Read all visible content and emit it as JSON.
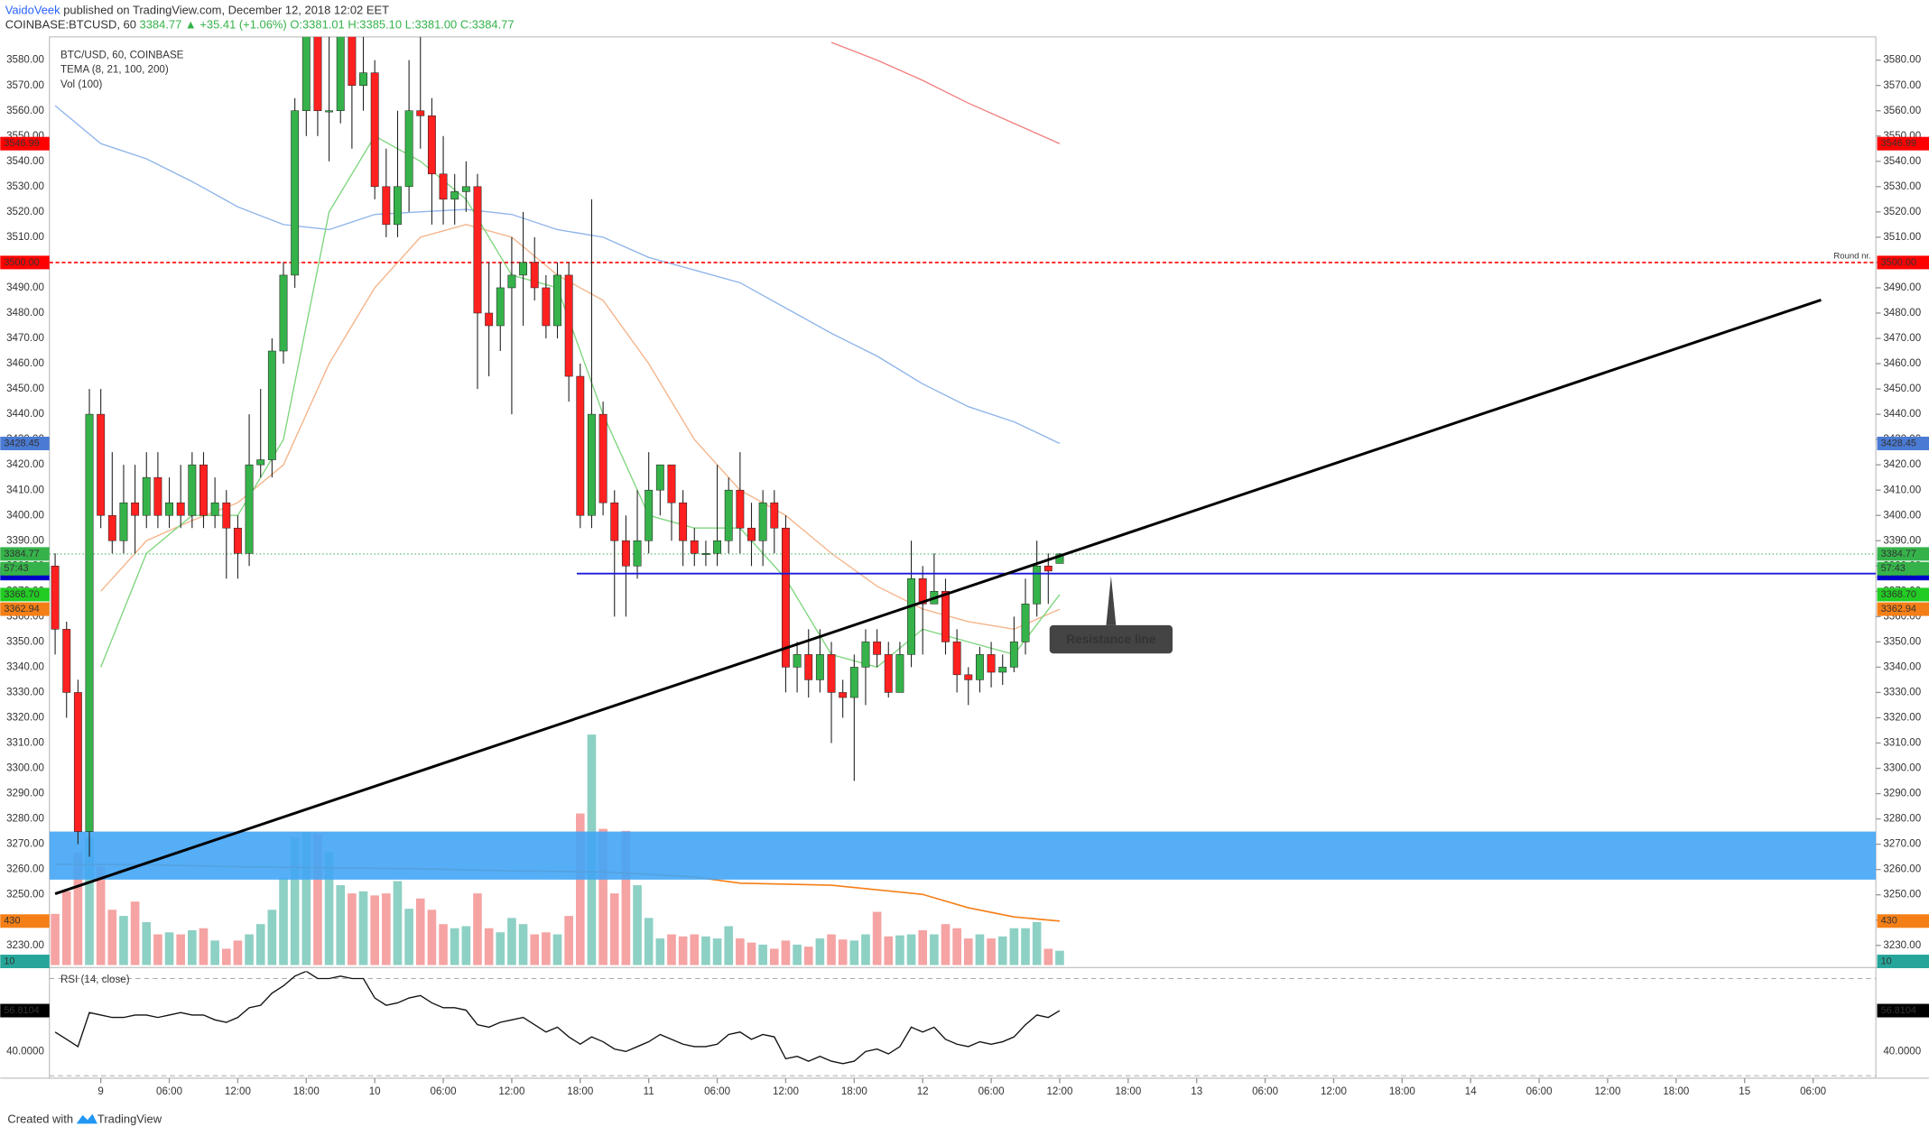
{
  "header": {
    "author": "VaidoVeek",
    "published": "published on TradingView.com, December 12, 2018 12:02 EET",
    "symbol": "COINBASE:BTCUSD, 60",
    "last": "3384.77",
    "change": "▲ +35.41 (+1.06%)",
    "ohlc": [
      "O:3381.01",
      "H:3385.10",
      "L:3381.00",
      "C:3384.77"
    ]
  },
  "footer": {
    "text": "Created with",
    "brand": "TradingView"
  },
  "chart_data": {
    "type": "candlestick",
    "legend": [
      "BTC/USD, 60, COINBASE",
      "TEMA (8, 21, 100, 200)",
      "Vol (100)"
    ],
    "up_color": "#35b34a",
    "down_color": "#ff2020",
    "xlim": [
      -0.5,
      159.5
    ],
    "xticks": [
      {
        "value": 4,
        "label": "9"
      },
      {
        "value": 10,
        "label": "06:00"
      },
      {
        "value": 16,
        "label": "12:00"
      },
      {
        "value": 22,
        "label": "18:00"
      },
      {
        "value": 28,
        "label": "10"
      },
      {
        "value": 34,
        "label": "06:00"
      },
      {
        "value": 40,
        "label": "12:00"
      },
      {
        "value": 46,
        "label": "18:00"
      },
      {
        "value": 52,
        "label": "11"
      },
      {
        "value": 58,
        "label": "06:00"
      },
      {
        "value": 64,
        "label": "12:00"
      },
      {
        "value": 70,
        "label": "18:00"
      },
      {
        "value": 76,
        "label": "12"
      },
      {
        "value": 82,
        "label": "06:00"
      },
      {
        "value": 88,
        "label": "12:00"
      },
      {
        "value": 94,
        "label": "18:00"
      },
      {
        "value": 100,
        "label": "13"
      },
      {
        "value": 106,
        "label": "06:00"
      },
      {
        "value": 112,
        "label": "12:00"
      },
      {
        "value": 118,
        "label": "18:00"
      },
      {
        "value": 124,
        "label": "14"
      },
      {
        "value": 130,
        "label": "06:00"
      },
      {
        "value": 136,
        "label": "12:00"
      },
      {
        "value": 142,
        "label": "18:00"
      },
      {
        "value": 148,
        "label": "15"
      },
      {
        "value": 154,
        "label": "06:00"
      }
    ],
    "ylim": [
      3222.2,
      3589.2
    ],
    "yticks": [
      {
        "value": 3230,
        "label": "3230.00"
      },
      {
        "value": 3240,
        "label": "3240.00"
      },
      {
        "value": 3250,
        "label": "3250.00"
      },
      {
        "value": 3260,
        "label": "3260.00"
      },
      {
        "value": 3270,
        "label": "3270.00"
      },
      {
        "value": 3280,
        "label": "3280.00"
      },
      {
        "value": 3290,
        "label": "3290.00"
      },
      {
        "value": 3300,
        "label": "3300.00"
      },
      {
        "value": 3310,
        "label": "3310.00"
      },
      {
        "value": 3320,
        "label": "3320.00"
      },
      {
        "value": 3330,
        "label": "3330.00"
      },
      {
        "value": 3340,
        "label": "3340.00"
      },
      {
        "value": 3350,
        "label": "3350.00"
      },
      {
        "value": 3360,
        "label": "3360.00"
      },
      {
        "value": 3370,
        "label": "3370.00"
      },
      {
        "value": 3380,
        "label": "3380.00"
      },
      {
        "value": 3390,
        "label": "3390.00"
      },
      {
        "value": 3400,
        "label": "3400.00"
      },
      {
        "value": 3410,
        "label": "3410.00"
      },
      {
        "value": 3420,
        "label": "3420.00"
      },
      {
        "value": 3430,
        "label": "3430.00"
      },
      {
        "value": 3440,
        "label": "3440.00"
      },
      {
        "value": 3450,
        "label": "3450.00"
      },
      {
        "value": 3460,
        "label": "3460.00"
      },
      {
        "value": 3470,
        "label": "3470.00"
      },
      {
        "value": 3480,
        "label": "3480.00"
      },
      {
        "value": 3490,
        "label": "3490.00"
      },
      {
        "value": 3500,
        "label": "3500.00"
      },
      {
        "value": 3510,
        "label": "3510.00"
      },
      {
        "value": 3520,
        "label": "3520.00"
      },
      {
        "value": 3530,
        "label": "3530.00"
      },
      {
        "value": 3540,
        "label": "3540.00"
      },
      {
        "value": 3550,
        "label": "3550.00"
      },
      {
        "value": 3560,
        "label": "3560.00"
      },
      {
        "value": 3570,
        "label": "3570.00"
      },
      {
        "value": 3580,
        "label": "3580.00"
      }
    ],
    "open": [
      3380,
      3355,
      3330,
      3275,
      3440,
      3400,
      3390,
      3405,
      3400,
      3415,
      3400,
      3405,
      3400,
      3420,
      3400,
      3405,
      3395,
      3385,
      3420,
      3422,
      3465,
      3495,
      3560,
      3590,
      3560,
      3560,
      3590,
      3570,
      3575,
      3530,
      3515,
      3530,
      3560,
      3558,
      3535,
      3525,
      3528,
      3530,
      3480,
      3475,
      3490,
      3495,
      3500,
      3490,
      3475,
      3495,
      3455,
      3400,
      3440,
      3405,
      3390,
      3380,
      3390,
      3410,
      3420,
      3405,
      3390,
      3385,
      3385,
      3390,
      3410,
      3395,
      3390,
      3405,
      3395,
      3340,
      3345,
      3335,
      3345,
      3330,
      3328,
      3340,
      3350,
      3345,
      3330,
      3345,
      3375,
      3365,
      3370,
      3350,
      3337,
      3335,
      3345,
      3338,
      3340,
      3350,
      3365,
      3380,
      3381.01
    ],
    "high": [
      3385,
      3358,
      3335,
      3450,
      3450,
      3425,
      3420,
      3420,
      3425,
      3425,
      3415,
      3420,
      3425,
      3425,
      3415,
      3410,
      3400,
      3440,
      3450,
      3470,
      3500,
      3565,
      3600,
      3595,
      3590,
      3595,
      3595,
      3590,
      3580,
      3545,
      3560,
      3580,
      3590,
      3565,
      3550,
      3535,
      3540,
      3535,
      3500,
      3500,
      3510,
      3520,
      3510,
      3495,
      3500,
      3500,
      3460,
      3525,
      3445,
      3410,
      3400,
      3410,
      3425,
      3420,
      3420,
      3410,
      3395,
      3390,
      3420,
      3415,
      3425,
      3405,
      3410,
      3410,
      3400,
      3350,
      3355,
      3355,
      3350,
      3335,
      3345,
      3355,
      3355,
      3350,
      3350,
      3390,
      3380,
      3385,
      3375,
      3355,
      3340,
      3348,
      3350,
      3345,
      3360,
      3375,
      3390,
      3385,
      3385.1
    ],
    "low": [
      3345,
      3320,
      3270,
      3265,
      3395,
      3385,
      3385,
      3385,
      3395,
      3395,
      3395,
      3395,
      3395,
      3395,
      3395,
      3375,
      3375,
      3380,
      3415,
      3415,
      3460,
      3490,
      3550,
      3550,
      3540,
      3555,
      3545,
      3560,
      3525,
      3510,
      3510,
      3520,
      3545,
      3515,
      3515,
      3515,
      3520,
      3450,
      3455,
      3465,
      3440,
      3475,
      3485,
      3470,
      3470,
      3445,
      3395,
      3395,
      3400,
      3360,
      3360,
      3375,
      3385,
      3400,
      3390,
      3380,
      3380,
      3380,
      3380,
      3385,
      3385,
      3380,
      3380,
      3385,
      3330,
      3330,
      3328,
      3330,
      3310,
      3320,
      3295,
      3325,
      3340,
      3328,
      3330,
      3340,
      3345,
      3365,
      3345,
      3330,
      3325,
      3330,
      3332,
      3333,
      3338,
      3345,
      3360,
      3365,
      3381
    ],
    "close": [
      3355,
      3330,
      3275,
      3440,
      3400,
      3390,
      3405,
      3400,
      3415,
      3400,
      3405,
      3400,
      3420,
      3400,
      3405,
      3395,
      3385,
      3420,
      3422,
      3465,
      3495,
      3560,
      3590,
      3560,
      3560,
      3590,
      3570,
      3575,
      3530,
      3515,
      3530,
      3560,
      3558,
      3535,
      3525,
      3528,
      3530,
      3480,
      3475,
      3490,
      3495,
      3500,
      3490,
      3475,
      3495,
      3455,
      3400,
      3440,
      3405,
      3390,
      3380,
      3390,
      3410,
      3420,
      3405,
      3390,
      3385,
      3385,
      3390,
      3410,
      3395,
      3390,
      3405,
      3395,
      3340,
      3345,
      3335,
      3345,
      3330,
      3328,
      3340,
      3350,
      3345,
      3330,
      3345,
      3375,
      3365,
      3370,
      3350,
      3337,
      3335,
      3345,
      3338,
      3340,
      3350,
      3365,
      3380,
      3378,
      3384.77
    ],
    "tema_lines": [
      {
        "color": "#8fb5ea",
        "x": [
          0,
          4,
          8,
          12,
          16,
          20,
          24,
          28,
          32,
          36,
          40,
          44,
          48,
          52,
          56,
          60,
          64,
          68,
          72,
          76,
          80,
          84,
          88
        ],
        "values": [
          3562,
          3547,
          3541,
          3532,
          3522,
          3515,
          3513,
          3519,
          3520,
          3521,
          3519,
          3513,
          3510,
          3502,
          3497,
          3492,
          3482,
          3472,
          3463,
          3452,
          3443,
          3437,
          3428.45
        ]
      },
      {
        "color": "#f08080",
        "x": [
          68,
          72,
          76,
          80,
          84,
          88
        ],
        "values": [
          3587,
          3580,
          3572,
          3563,
          3555,
          3546.99
        ]
      },
      {
        "color": "#f5b48a",
        "x": [
          4,
          8,
          12,
          16,
          20,
          24,
          28,
          32,
          36,
          40,
          44,
          48,
          52,
          56,
          60,
          64,
          68,
          72,
          76,
          80,
          84,
          88
        ],
        "values": [
          3370,
          3390,
          3398,
          3405,
          3420,
          3460,
          3490,
          3510,
          3515,
          3510,
          3495,
          3485,
          3460,
          3430,
          3410,
          3400,
          3385,
          3372,
          3363,
          3358,
          3355,
          3362.94
        ]
      },
      {
        "color": "#7ed67e",
        "x": [
          4,
          8,
          12,
          16,
          20,
          24,
          28,
          32,
          36,
          40,
          44,
          48,
          52,
          56,
          60,
          64,
          68,
          72,
          76,
          80,
          84,
          88
        ],
        "values": [
          3340,
          3385,
          3400,
          3400,
          3430,
          3520,
          3550,
          3540,
          3525,
          3495,
          3490,
          3440,
          3400,
          3395,
          3395,
          3375,
          3345,
          3340,
          3355,
          3350,
          3345,
          3368.7
        ]
      }
    ],
    "price_labels": [
      {
        "value": 3546.99,
        "label": "3546.99",
        "color": "#ff0000"
      },
      {
        "value": 3500,
        "label": "3500.00",
        "color": "#ff0000"
      },
      {
        "value": 3428.45,
        "label": "3428.45",
        "color": "#4a7bd4"
      },
      {
        "value": 3384.77,
        "label": "3384.77",
        "color": "#35b34a"
      },
      {
        "value": 3377,
        "label": "3377.00",
        "color": "#0000cc"
      },
      {
        "value": 3368.7,
        "label": "3368.70",
        "color": "#22cc22"
      },
      {
        "value": 3362.94,
        "label": "3362.94",
        "color": "#f57f17"
      }
    ],
    "countdown": "57:43",
    "round_level": {
      "value": 3500,
      "label": "Round nr.",
      "color": "#ff0000"
    },
    "resistance": {
      "x": 45.7,
      "value": 3377,
      "color": "#1a1adb",
      "label": "Resistance line",
      "label_x": 92.5
    },
    "trendline": {
      "x": [
        0,
        154.7
      ],
      "values": [
        3250.4,
        3485.2
      ],
      "color": "#000000"
    },
    "zone": {
      "values": [
        3256,
        3275
      ],
      "color": "#42a5f5"
    },
    "volume": {
      "up_color": "#8dd0c4",
      "down_color": "#f5a3a3",
      "ylim": [
        0,
        9060
      ],
      "yticks": [
        10
      ],
      "values": [
        500,
        720,
        1100,
        1250,
        960,
        540,
        480,
        620,
        420,
        300,
        320,
        300,
        340,
        360,
        240,
        160,
        240,
        300,
        400,
        540,
        850,
        1250,
        1300,
        1280,
        1100,
        780,
        700,
        720,
        680,
        700,
        820,
        550,
        650,
        540,
        400,
        360,
        380,
        700,
        360,
        320,
        460,
        400,
        300,
        320,
        300,
        480,
        1480,
        2250,
        1330,
        700,
        1310,
        780,
        460,
        260,
        300,
        280,
        300,
        280,
        260,
        380,
        260,
        220,
        200,
        160,
        240,
        200,
        180,
        260,
        300,
        250,
        240,
        300,
        520,
        280,
        290,
        300,
        340,
        300,
        400,
        360,
        260,
        300,
        260,
        280,
        360,
        360,
        420,
        160,
        140
      ],
      "ma": {
        "color": "#f57f17",
        "x": [
          0,
          8,
          16,
          24,
          32,
          40,
          48,
          56,
          60,
          68,
          76,
          80,
          84,
          88
        ],
        "values": [
          985,
          980,
          960,
          950,
          940,
          920,
          910,
          860,
          800,
          780,
          690,
          560,
          470,
          430
        ]
      }
    },
    "rsi": {
      "title": "RSI (14, close)",
      "ylim": [
        29,
        73
      ],
      "bands": [
        70,
        30
      ],
      "yticks": [
        {
          "value": 40,
          "label": "40.0000"
        }
      ],
      "values": [
        48,
        45,
        42,
        56,
        55,
        54,
        54,
        55,
        55,
        54,
        55,
        56,
        55,
        55,
        53,
        52,
        54,
        58,
        59,
        64,
        67,
        71,
        73,
        70,
        70,
        71,
        70,
        70,
        62,
        59,
        60,
        62,
        63,
        60,
        58,
        58,
        57,
        51,
        50,
        52,
        53,
        54,
        51,
        48,
        50,
        46,
        43,
        46,
        44,
        41,
        40,
        42,
        44,
        47,
        45,
        43,
        42,
        42,
        43,
        47,
        48,
        45,
        47,
        46,
        37,
        38,
        36,
        38,
        36,
        35,
        36,
        40,
        41,
        39,
        42,
        50,
        48,
        50,
        45,
        43,
        42,
        44,
        43,
        44,
        46,
        51,
        55,
        54,
        56.8104
      ]
    }
  }
}
